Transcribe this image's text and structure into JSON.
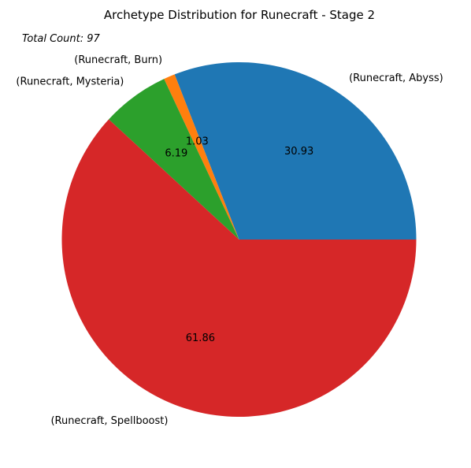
{
  "chart_data": {
    "type": "pie",
    "title": "Archetype Distribution for Runecraft - Stage 2",
    "annotation": "Total Count: 97",
    "slices": [
      {
        "label": "(Runecraft, Abyss)",
        "value": 30.93,
        "value_label": "30.93",
        "color": "#1f77b4"
      },
      {
        "label": "(Runecraft, Burn)",
        "value": 1.03,
        "value_label": "1.03",
        "color": "#ff7f0e"
      },
      {
        "label": "(Runecraft, Mysteria)",
        "value": 6.19,
        "value_label": "6.19",
        "color": "#2ca02c"
      },
      {
        "label": "(Runecraft, Spellboost)",
        "value": 61.86,
        "value_label": "61.86",
        "color": "#d62728"
      }
    ],
    "start_angle_deg": 0,
    "direction": "counterclockwise"
  }
}
